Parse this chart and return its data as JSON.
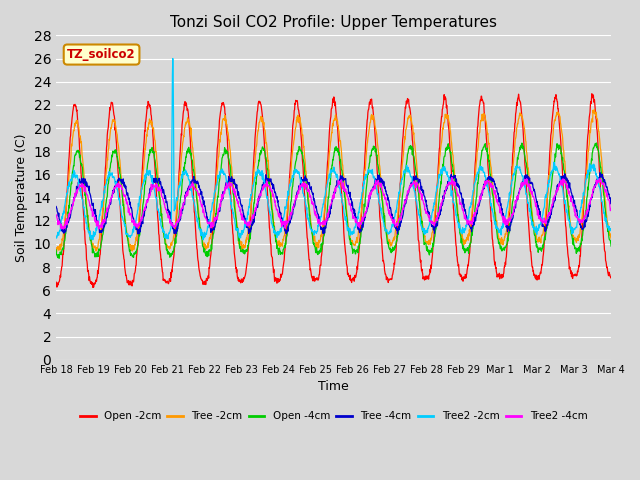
{
  "title": "Tonzi Soil CO2 Profile: Upper Temperatures",
  "xlabel": "Time",
  "ylabel": "Soil Temperature (C)",
  "annotation": "TZ_soilco2",
  "ylim": [
    0,
    28
  ],
  "yticks": [
    0,
    2,
    4,
    6,
    8,
    10,
    12,
    14,
    16,
    18,
    20,
    22,
    24,
    26,
    28
  ],
  "xtick_labels": [
    "Feb 18",
    "Feb 19",
    "Feb 20",
    "Feb 21",
    "Feb 22",
    "Feb 23",
    "Feb 24",
    "Feb 25",
    "Feb 26",
    "Feb 27",
    "Feb 28",
    "Feb 29",
    "Mar 1",
    "Mar 2",
    "Mar 3",
    "Mar 4"
  ],
  "bg_color": "#d8d8d8",
  "plot_bg_color": "#d8d8d8",
  "grid_color": "#ffffff",
  "lines": [
    {
      "label": "Open -2cm",
      "color": "#ff0000"
    },
    {
      "label": "Tree -2cm",
      "color": "#ff9900"
    },
    {
      "label": "Open -4cm",
      "color": "#00cc00"
    },
    {
      "label": "Tree -4cm",
      "color": "#0000cc"
    },
    {
      "label": "Tree2 -2cm",
      "color": "#00ccff"
    },
    {
      "label": "Tree2 -4cm",
      "color": "#ff00ff"
    }
  ],
  "n_points": 1500,
  "days": 15,
  "peak_heights": [
    22.0,
    20.5,
    18.0,
    15.5,
    16.0,
    15.0
  ],
  "trough_depths": [
    6.5,
    9.5,
    9.0,
    11.0,
    10.5,
    11.5
  ],
  "phase_offsets": [
    0.0,
    0.05,
    0.08,
    0.22,
    -0.02,
    0.18
  ],
  "trend": [
    0.05,
    0.06,
    0.04,
    0.02,
    0.05,
    0.03
  ],
  "sharpness": [
    3.0,
    2.5,
    2.5,
    1.5,
    2.0,
    2.0
  ]
}
